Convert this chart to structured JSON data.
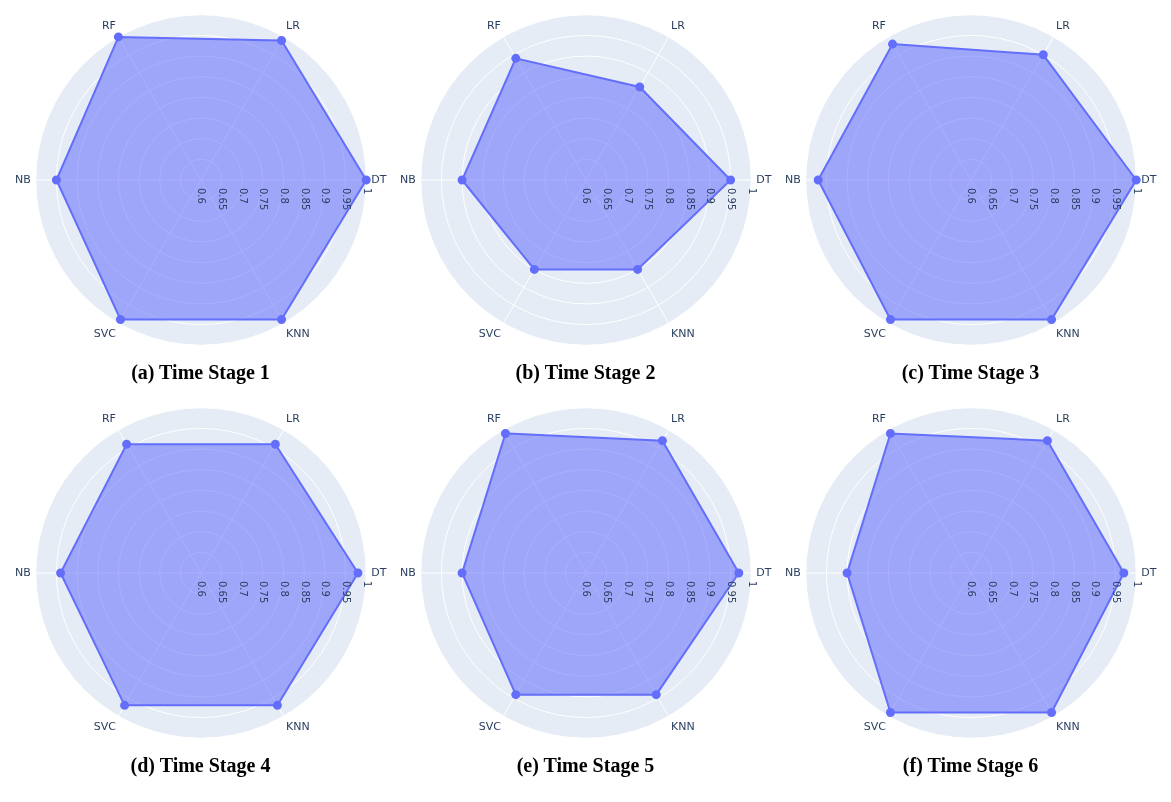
{
  "chart_data": [
    {
      "type": "radar",
      "title": "(a) Time Stage 1",
      "categories": [
        "LR",
        "DT",
        "KNN",
        "SVC",
        "NB",
        "RF"
      ],
      "series": [
        {
          "color": "#636efa",
          "values": [
            0.99,
            1.0,
            0.99,
            0.99,
            0.95,
            1.0
          ]
        }
      ],
      "ylim": [
        0.6,
        1
      ],
      "yticks": [
        0.6,
        0.65,
        0.7,
        0.75,
        0.8,
        0.85,
        0.9,
        0.95,
        1
      ],
      "grid": true,
      "marker": "circle"
    },
    {
      "type": "radar",
      "title": "(b) Time Stage 2",
      "categories": [
        "LR",
        "DT",
        "KNN",
        "SVC",
        "NB",
        "RF"
      ],
      "series": [
        {
          "color": "#636efa",
          "values": [
            0.86,
            0.95,
            0.85,
            0.85,
            0.9,
            0.94
          ]
        }
      ],
      "ylim": [
        0.6,
        1
      ],
      "yticks": [
        0.6,
        0.65,
        0.7,
        0.75,
        0.8,
        0.85,
        0.9,
        0.95,
        1
      ],
      "grid": true,
      "marker": "circle"
    },
    {
      "type": "radar",
      "title": "(c) Time Stage 3",
      "categories": [
        "LR",
        "DT",
        "KNN",
        "SVC",
        "NB",
        "RF"
      ],
      "series": [
        {
          "color": "#636efa",
          "values": [
            0.95,
            1.0,
            0.99,
            0.99,
            0.97,
            0.98
          ]
        }
      ],
      "ylim": [
        0.6,
        1
      ],
      "yticks": [
        0.6,
        0.65,
        0.7,
        0.75,
        0.8,
        0.85,
        0.9,
        0.95,
        1
      ],
      "grid": true,
      "marker": "circle"
    },
    {
      "type": "radar",
      "title": "(d) Time Stage 4",
      "categories": [
        "LR",
        "DT",
        "KNN",
        "SVC",
        "NB",
        "RF"
      ],
      "series": [
        {
          "color": "#636efa",
          "values": [
            0.96,
            0.98,
            0.97,
            0.97,
            0.94,
            0.96
          ]
        }
      ],
      "ylim": [
        0.6,
        1
      ],
      "yticks": [
        0.6,
        0.65,
        0.7,
        0.75,
        0.8,
        0.85,
        0.9,
        0.95,
        1
      ],
      "grid": true,
      "marker": "circle"
    },
    {
      "type": "radar",
      "title": "(e) Time Stage 5",
      "categories": [
        "LR",
        "DT",
        "KNN",
        "SVC",
        "NB",
        "RF"
      ],
      "series": [
        {
          "color": "#636efa",
          "values": [
            0.97,
            0.97,
            0.94,
            0.94,
            0.9,
            0.99
          ]
        }
      ],
      "ylim": [
        0.6,
        1
      ],
      "yticks": [
        0.6,
        0.65,
        0.7,
        0.75,
        0.8,
        0.85,
        0.9,
        0.95,
        1
      ],
      "grid": true,
      "marker": "circle"
    },
    {
      "type": "radar",
      "title": "(f) Time Stage 6",
      "categories": [
        "LR",
        "DT",
        "KNN",
        "SVC",
        "NB",
        "RF"
      ],
      "series": [
        {
          "color": "#636efa",
          "values": [
            0.97,
            0.97,
            0.99,
            0.99,
            0.9,
            0.99
          ]
        }
      ],
      "ylim": [
        0.6,
        1
      ],
      "yticks": [
        0.6,
        0.65,
        0.7,
        0.75,
        0.8,
        0.85,
        0.9,
        0.95,
        1
      ],
      "grid": true,
      "marker": "circle"
    }
  ]
}
